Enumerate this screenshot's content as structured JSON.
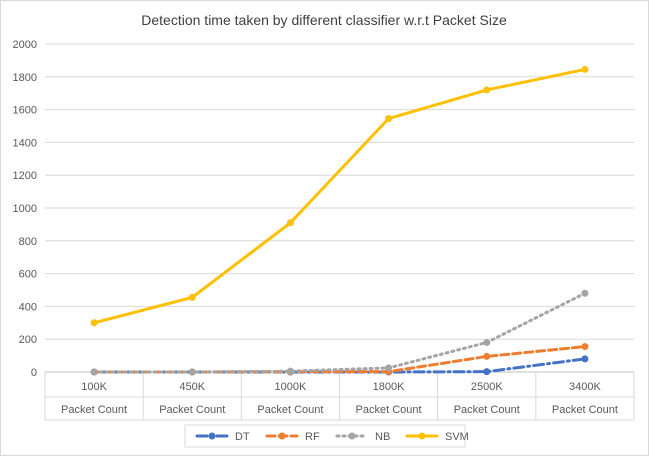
{
  "chart_data": {
    "type": "line",
    "title": "Detection time taken by different classifier w.r.t Packet Size",
    "categories": [
      "100K",
      "450K",
      "1000K",
      "1800K",
      "2500K",
      "3400K"
    ],
    "category_group_label": "Packet Count",
    "ylim": [
      0,
      2000
    ],
    "yticks": [
      0,
      200,
      400,
      600,
      800,
      1000,
      1200,
      1400,
      1600,
      1800,
      2000
    ],
    "grid": true,
    "legend_position": "bottom",
    "series": [
      {
        "name": "DT",
        "color": "#4472C4",
        "style": "dash-dot",
        "values": [
          0,
          0,
          0,
          0,
          2,
          80
        ]
      },
      {
        "name": "RF",
        "color": "#ED7D31",
        "style": "dash",
        "values": [
          0,
          0,
          2,
          2,
          95,
          155
        ]
      },
      {
        "name": "NB",
        "color": "#A5A5A5",
        "style": "dot",
        "values": [
          0,
          0,
          5,
          25,
          180,
          480
        ]
      },
      {
        "name": "SVM",
        "color": "#FFC000",
        "style": "solid",
        "values": [
          300,
          455,
          910,
          1545,
          1720,
          1845
        ]
      }
    ]
  }
}
